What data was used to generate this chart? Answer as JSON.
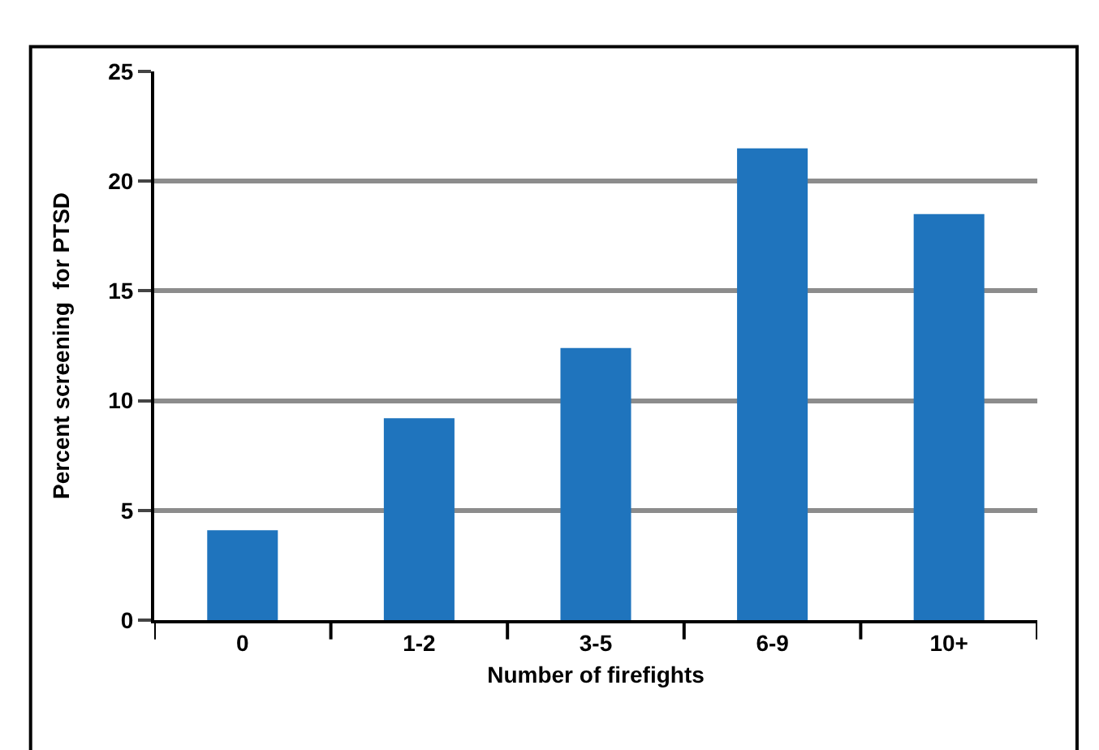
{
  "chart_data": {
    "type": "bar",
    "xlabel": "Number of firefights",
    "ylabel": "Percent screening  for PTSD",
    "categories": [
      "0",
      "1-2",
      "3-5",
      "6-9",
      "10+"
    ],
    "values": [
      4.1,
      9.2,
      12.4,
      21.5,
      18.5
    ],
    "color": "#1f74bd",
    "ylim": [
      0,
      25
    ],
    "yticks": [
      0,
      5,
      10,
      15,
      20,
      25
    ],
    "grid": "y"
  }
}
